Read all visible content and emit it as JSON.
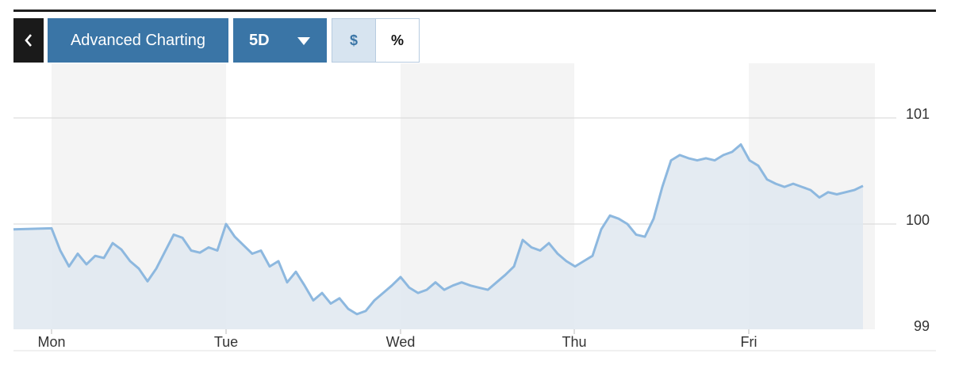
{
  "toolbar": {
    "back_icon": "chevron-left-icon",
    "advanced_label": "Advanced Charting",
    "range_label": "5D",
    "range_icon": "caret-down-icon",
    "currency_label": "$",
    "percent_label": "%",
    "active_mode": "$"
  },
  "colors": {
    "line": "#8db8df",
    "area": "#dfe8f0",
    "button": "#3a75a6",
    "shade": "#f4f4f4"
  },
  "chart_data": {
    "type": "area",
    "title": "",
    "xlabel": "",
    "ylabel": "",
    "categories": [
      "Mon",
      "Tue",
      "Wed",
      "Thu",
      "Fri"
    ],
    "y_ticks": [
      "101",
      "100",
      "99"
    ],
    "y_tick_values": [
      101,
      100,
      99
    ],
    "ylim": [
      99,
      101.1
    ],
    "y_axis_side": "right",
    "grid": true,
    "series": [
      {
        "values": [
          [
            0,
            99.96
          ],
          [
            0.05,
            99.75
          ],
          [
            0.1,
            99.6
          ],
          [
            0.15,
            99.72
          ],
          [
            0.2,
            99.62
          ],
          [
            0.25,
            99.7
          ],
          [
            0.3,
            99.68
          ],
          [
            0.35,
            99.82
          ],
          [
            0.4,
            99.76
          ],
          [
            0.45,
            99.65
          ],
          [
            0.5,
            99.58
          ],
          [
            0.55,
            99.46
          ],
          [
            0.6,
            99.58
          ],
          [
            0.65,
            99.74
          ],
          [
            0.7,
            99.9
          ],
          [
            0.75,
            99.87
          ],
          [
            0.8,
            99.75
          ],
          [
            0.85,
            99.73
          ],
          [
            0.9,
            99.78
          ],
          [
            0.95,
            99.75
          ],
          [
            1.0,
            100.0
          ],
          [
            1.05,
            99.88
          ],
          [
            1.1,
            99.8
          ],
          [
            1.15,
            99.72
          ],
          [
            1.2,
            99.75
          ],
          [
            1.25,
            99.6
          ],
          [
            1.3,
            99.65
          ],
          [
            1.35,
            99.45
          ],
          [
            1.4,
            99.55
          ],
          [
            1.45,
            99.42
          ],
          [
            1.5,
            99.28
          ],
          [
            1.55,
            99.35
          ],
          [
            1.6,
            99.25
          ],
          [
            1.65,
            99.3
          ],
          [
            1.7,
            99.2
          ],
          [
            1.75,
            99.15
          ],
          [
            1.8,
            99.18
          ],
          [
            1.85,
            99.28
          ],
          [
            1.9,
            99.35
          ],
          [
            1.95,
            99.42
          ],
          [
            2.0,
            99.5
          ],
          [
            2.05,
            99.4
          ],
          [
            2.1,
            99.35
          ],
          [
            2.15,
            99.38
          ],
          [
            2.2,
            99.45
          ],
          [
            2.25,
            99.38
          ],
          [
            2.3,
            99.42
          ],
          [
            2.35,
            99.45
          ],
          [
            2.4,
            99.42
          ],
          [
            2.45,
            99.4
          ],
          [
            2.5,
            99.38
          ],
          [
            2.55,
            99.45
          ],
          [
            2.6,
            99.52
          ],
          [
            2.65,
            99.6
          ],
          [
            2.7,
            99.85
          ],
          [
            2.75,
            99.78
          ],
          [
            2.8,
            99.75
          ],
          [
            2.85,
            99.82
          ],
          [
            2.9,
            99.72
          ],
          [
            2.95,
            99.65
          ],
          [
            3.0,
            99.6
          ],
          [
            3.05,
            99.65
          ],
          [
            3.1,
            99.7
          ],
          [
            3.15,
            99.95
          ],
          [
            3.2,
            100.08
          ],
          [
            3.25,
            100.05
          ],
          [
            3.3,
            100.0
          ],
          [
            3.35,
            99.9
          ],
          [
            3.4,
            99.88
          ],
          [
            3.45,
            100.05
          ],
          [
            3.5,
            100.35
          ],
          [
            3.55,
            100.6
          ],
          [
            3.6,
            100.65
          ],
          [
            3.65,
            100.62
          ],
          [
            3.7,
            100.6
          ],
          [
            3.75,
            100.62
          ],
          [
            3.8,
            100.6
          ],
          [
            3.85,
            100.65
          ],
          [
            3.9,
            100.68
          ],
          [
            3.95,
            100.75
          ],
          [
            4.0,
            100.6
          ],
          [
            4.05,
            100.55
          ],
          [
            4.1,
            100.42
          ],
          [
            4.15,
            100.38
          ],
          [
            4.2,
            100.35
          ],
          [
            4.25,
            100.38
          ],
          [
            4.3,
            100.35
          ],
          [
            4.35,
            100.32
          ],
          [
            4.4,
            100.25
          ],
          [
            4.45,
            100.3
          ],
          [
            4.5,
            100.28
          ],
          [
            4.55,
            100.3
          ],
          [
            4.6,
            100.32
          ],
          [
            4.65,
            100.36
          ]
        ]
      }
    ]
  }
}
